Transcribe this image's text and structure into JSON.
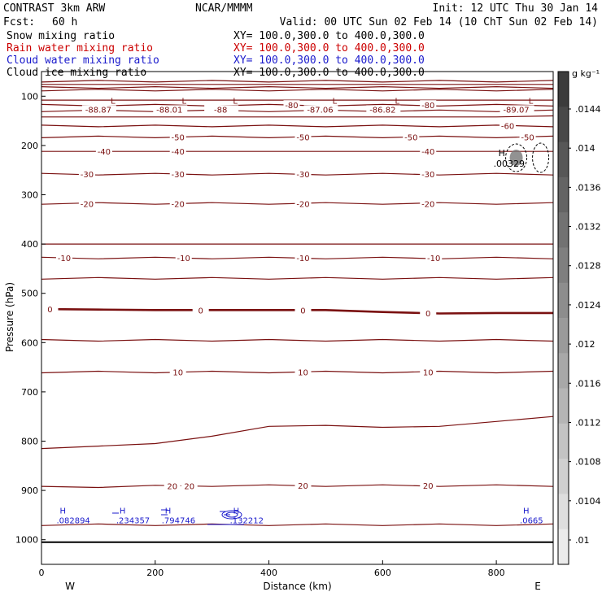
{
  "header": {
    "model": "CONTRAST  3km ARW",
    "org": "NCAR/MMMM",
    "init": "Init: 12 UTC Thu 30 Jan 14",
    "fcst_label": "Fcst:",
    "fcst_value": "60 h",
    "valid": "Valid: 00 UTC Sun 02 Feb 14 (10 ChT Sun 02 Feb 14)"
  },
  "legend": [
    {
      "name": "Snow mixing ratio",
      "xy": "XY= 100.0,300.0 to 400.0,300.0",
      "color": "#000000"
    },
    {
      "name": "Rain water mixing ratio",
      "xy": "XY= 100.0,300.0 to 400.0,300.0",
      "color": "#cc0000"
    },
    {
      "name": "Cloud water mixing ratio",
      "xy": "XY= 100.0,300.0 to 400.0,300.0",
      "color": "#1a1acc"
    },
    {
      "name": "Cloud ice mixing ratio",
      "xy": "XY= 100.0,300.0 to 400.0,300.0",
      "color": "#000000"
    }
  ],
  "chart_data": {
    "type": "contour",
    "xlabel": "Distance (km)",
    "ylabel": "Pressure (hPa)",
    "xlim": [
      0,
      900
    ],
    "ylim": [
      1050,
      50
    ],
    "xticks": [
      0,
      200,
      400,
      600,
      800
    ],
    "yticks": [
      100,
      200,
      300,
      400,
      500,
      600,
      700,
      800,
      900,
      1000
    ],
    "x_end_labels": {
      "left": "W",
      "right": "E"
    },
    "colorbar": {
      "unit": "g kg⁻¹",
      "labels": [
        ".0144",
        ".014",
        ".0136",
        ".0132",
        ".0128",
        ".0124",
        ".012",
        ".0116",
        ".0112",
        ".0108",
        ".0104",
        ".01"
      ]
    },
    "ground_pressure": 1005,
    "isotherms": [
      {
        "p": [
          70,
          70,
          70,
          70,
          70,
          70,
          70,
          70,
          70,
          70
        ],
        "label": null
      },
      {
        "p": [
          76,
          76,
          76,
          76,
          76,
          76,
          76,
          76,
          76,
          76
        ],
        "label": null
      },
      {
        "p": [
          82,
          82,
          82,
          82,
          82,
          82,
          82,
          82,
          82,
          82
        ],
        "label": null
      },
      {
        "p": [
          88,
          88,
          88,
          88,
          88,
          88,
          88,
          88,
          88,
          88
        ],
        "label": null
      },
      {
        "p": [
          108,
          108,
          108,
          108,
          108,
          108,
          108,
          108,
          108,
          108
        ],
        "label": null
      },
      {
        "p": [
          118,
          118,
          118,
          118,
          118,
          118,
          118,
          118,
          118,
          118
        ],
        "label": "-80",
        "lx": [
          440,
          680
        ]
      },
      {
        "p": [
          130,
          130,
          130,
          130,
          130,
          130,
          130,
          130,
          130,
          130
        ],
        "label": null
      },
      {
        "p": [
          142,
          142,
          142,
          142,
          142,
          142,
          142,
          142,
          142,
          140
        ],
        "label": null
      },
      {
        "p": [
          160,
          160,
          160,
          160,
          160,
          160,
          160,
          160,
          160,
          160
        ],
        "label": "-60",
        "lx": [
          820
        ]
      },
      {
        "p": [
          183,
          183,
          183,
          183,
          183,
          183,
          183,
          183,
          183,
          183
        ],
        "label": "-50",
        "lx": [
          240,
          460,
          650,
          855
        ]
      },
      {
        "p": [
          212,
          212,
          212,
          212,
          212,
          212,
          212,
          212,
          212,
          212
        ],
        "label": "-40",
        "lx": [
          110,
          240,
          680
        ]
      },
      {
        "p": [
          258,
          258,
          258,
          258,
          258,
          258,
          258,
          258,
          258,
          258
        ],
        "label": "-30",
        "lx": [
          80,
          240,
          460,
          680
        ]
      },
      {
        "p": [
          318,
          318,
          318,
          318,
          318,
          318,
          318,
          318,
          318,
          318
        ],
        "label": "-20",
        "lx": [
          80,
          240,
          460,
          680
        ]
      },
      {
        "p": [
          400,
          400,
          400,
          400,
          400,
          400,
          400,
          400,
          400,
          400
        ],
        "label": null
      },
      {
        "p": [
          428,
          428,
          428,
          428,
          428,
          428,
          428,
          428,
          428,
          428
        ],
        "label": "-10",
        "lx": [
          40,
          250,
          460,
          690
        ]
      },
      {
        "p": [
          470,
          470,
          470,
          470,
          470,
          470,
          470,
          470,
          470,
          470
        ],
        "label": null
      },
      {
        "p": [
          532,
          533,
          534,
          534,
          534,
          534,
          538,
          541,
          540,
          540
        ],
        "label": "0",
        "lx": [
          15,
          280,
          460,
          680
        ],
        "heavy": true
      },
      {
        "p": [
          595,
          595,
          595,
          595,
          595,
          595,
          595,
          595,
          595,
          595
        ],
        "label": null
      },
      {
        "p": [
          660,
          660,
          660,
          660,
          660,
          660,
          660,
          660,
          660,
          660
        ],
        "label": "10",
        "lx": [
          240,
          460,
          680
        ]
      },
      {
        "p": [
          815,
          810,
          805,
          790,
          770,
          768,
          772,
          770,
          760,
          750
        ],
        "label": null
      },
      {
        "p": [
          893,
          892,
          891,
          890,
          890,
          890,
          890,
          890,
          890,
          890
        ],
        "label": "20",
        "lx": [
          230,
          260,
          460,
          680
        ]
      },
      {
        "p": [
          970,
          970,
          970,
          970,
          970,
          970,
          970,
          970,
          970,
          970
        ],
        "label": null
      }
    ],
    "extrema_lows": [
      {
        "x": 100,
        "p": 82,
        "value": "-88.87"
      },
      {
        "x": 225,
        "p": 82,
        "value": "-88.01"
      },
      {
        "x": 315,
        "p": 82,
        "value": "-88"
      },
      {
        "x": 490,
        "p": 82,
        "value": "-87.06"
      },
      {
        "x": 600,
        "p": 82,
        "value": "-86.82"
      },
      {
        "x": 835,
        "p": 82,
        "value": "-89.07"
      }
    ],
    "cloud_ice_high": {
      "x": 835,
      "p": 225,
      "value": ".00329"
    },
    "cloud_water_highs": [
      {
        "x": 55,
        "p": 960,
        "value": ".082894"
      },
      {
        "x": 160,
        "p": 960,
        "value": ".234357"
      },
      {
        "x": 240,
        "p": 960,
        "value": ".794746"
      },
      {
        "x": 360,
        "p": 960,
        "value": ".132212"
      },
      {
        "x": 870,
        "p": 960,
        "value": ".0665"
      }
    ]
  }
}
